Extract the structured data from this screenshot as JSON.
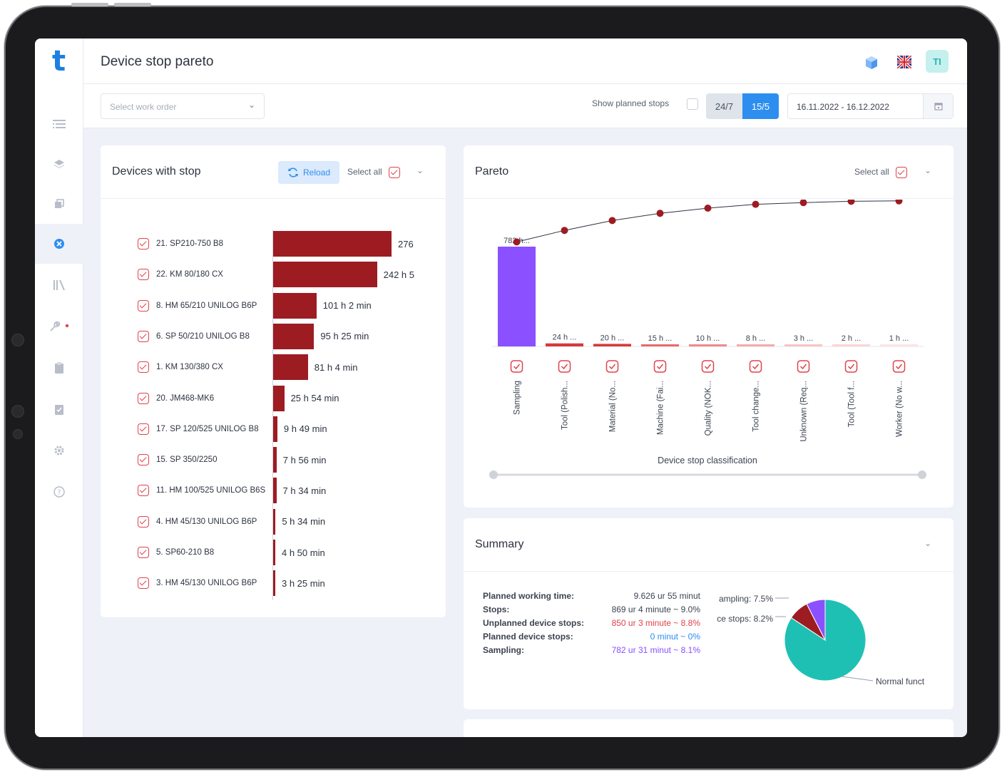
{
  "header": {
    "title": "Device stop pareto",
    "avatar_initials": "TI",
    "logo": "t"
  },
  "filters": {
    "work_order_placeholder": "Select work order",
    "show_planned_label": "Show planned stops",
    "mode_options": [
      "24/7",
      "15/5"
    ],
    "mode_selected": "15/5",
    "date_range": "16.11.2022 - 16.12.2022"
  },
  "devices_card": {
    "title": "Devices with stop",
    "reload_label": "Reload",
    "select_all_label": "Select all",
    "rows": [
      {
        "name": "21. SP210-750 B8",
        "value_label": "276",
        "hours": 276
      },
      {
        "name": "22. KM 80/180 CX",
        "value_label": "242 h 5",
        "hours": 242.1
      },
      {
        "name": "8. HM 65/210 UNILOG B6P",
        "value_label": "101 h 2 min",
        "hours": 101.03
      },
      {
        "name": "6. SP 50/210 UNILOG B8",
        "value_label": "95 h 25 min",
        "hours": 95.42
      },
      {
        "name": "1. KM 130/380 CX",
        "value_label": "81 h 4 min",
        "hours": 81.07
      },
      {
        "name": "20. JM468-MK6",
        "value_label": "25 h 54 min",
        "hours": 25.9
      },
      {
        "name": "17. SP 120/525 UNILOG B8",
        "value_label": "9 h 49 min",
        "hours": 9.82
      },
      {
        "name": "15. SP 350/2250",
        "value_label": "7 h 56 min",
        "hours": 7.93
      },
      {
        "name": "11. HM 100/525 UNILOG B6S",
        "value_label": "7 h 34 min",
        "hours": 7.57
      },
      {
        "name": "4. HM 45/130 UNILOG B6P",
        "value_label": "5 h 34 min",
        "hours": 5.57
      },
      {
        "name": "5. SP60-210 B8",
        "value_label": "4 h 50 min",
        "hours": 4.83
      },
      {
        "name": "3. HM 45/130 UNILOG B6P",
        "value_label": "3 h 25 min",
        "hours": 3.42
      }
    ]
  },
  "pareto_card": {
    "title": "Pareto",
    "select_all_label": "Select all",
    "xlabel": "Device stop classification"
  },
  "chart_data": {
    "type": "bar",
    "categories": [
      "Sampling",
      "Tool (Polish...",
      "Material (No...",
      "Machine (Fai...",
      "Quality (NOK...",
      "Tool change...",
      "Unknown (Req...",
      "Tool (Tool f...",
      "Worker (No w..."
    ],
    "bar_labels": [
      "782 h...",
      "24 h ...",
      "20 h ...",
      "15 h ...",
      "10 h ...",
      "8 h ...",
      "3 h ...",
      "2 h ...",
      "1 h ..."
    ],
    "values": [
      782,
      24,
      20,
      15,
      10,
      8,
      3,
      2,
      1
    ],
    "cumulative_percent": [
      90.1,
      92.8,
      95.1,
      96.8,
      98.0,
      98.9,
      99.3,
      99.6,
      99.7
    ],
    "bar_colors": [
      "#8b50ff",
      "#d63a3a",
      "#d63a3a",
      "#e86a6a",
      "#ef8a8a",
      "#f4aaaa",
      "#f7c4c4",
      "#fad6d6",
      "#fce4e4"
    ],
    "line_color": "#9d1c22",
    "xlabel": "Device stop classification"
  },
  "summary_card": {
    "title": "Summary",
    "rows": [
      {
        "label": "Planned working time:",
        "value": "9.626 ur 55 minut",
        "color": "#3d4352"
      },
      {
        "label": "Stops:",
        "value": "869 ur 4 minute ~ 9.0%",
        "color": "#3d4352"
      },
      {
        "label": "Unplanned device stops:",
        "value": "850 ur 3 minute ~ 8.8%",
        "color": "#e0424e"
      },
      {
        "label": "Planned device stops:",
        "value": "0 minut ~ 0%",
        "color": "#2e8ef0"
      },
      {
        "label": "Sampling:",
        "value": "782 ur 31 minut ~ 8.1%",
        "color": "#8b50ff"
      }
    ],
    "pie": {
      "slices": [
        {
          "label": "Normal funct",
          "percent": 84.3,
          "color": "#1fc0b4"
        },
        {
          "label": "ce stops: 8.2%",
          "percent": 8.2,
          "color": "#9d1c22"
        },
        {
          "label": "ampling: 7.5%",
          "percent": 7.5,
          "color": "#8b50ff"
        }
      ]
    }
  }
}
